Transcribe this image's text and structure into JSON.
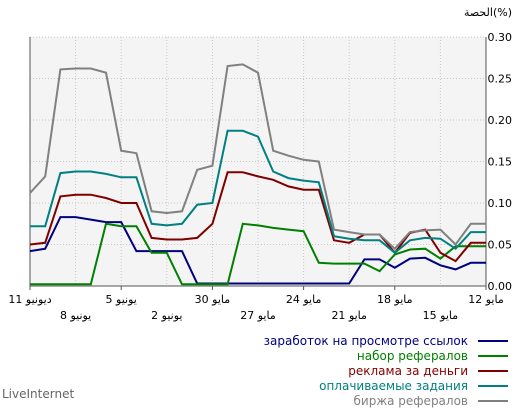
{
  "chart_data": {
    "type": "line",
    "title": "",
    "ylabel": "الحصة(%)",
    "ylim": [
      0,
      0.3
    ],
    "yticks": [
      "0.00",
      "0.05",
      "0.10",
      "0.15",
      "0.20",
      "0.25",
      "0.30"
    ],
    "grid": true,
    "x_labels_upper": [
      "11 ديونيو",
      "5 يونيو",
      "30 مايو",
      "24 مايو",
      "18 مايو",
      "12 مايو"
    ],
    "x_labels_lower": [
      "8 يونيو",
      "2 يونيو",
      "27 مايو",
      "21 مايو",
      "15 مايو"
    ],
    "series": [
      {
        "name": "заработок на просмотре ссылок",
        "color": "#000080",
        "values": [
          0.042,
          0.045,
          0.083,
          0.083,
          0.08,
          0.077,
          0.077,
          0.042,
          0.042,
          0.042,
          0.042,
          0.003,
          0.003,
          0.003,
          0.003,
          0.003,
          0.003,
          0.003,
          0.003,
          0.003,
          0.003,
          0.003,
          0.032,
          0.032,
          0.022,
          0.033,
          0.034,
          0.025,
          0.02,
          0.028,
          0.028
        ]
      },
      {
        "name": "набор рефералов",
        "color": "#008000",
        "values": [
          0.002,
          0.002,
          0.002,
          0.002,
          0.002,
          0.075,
          0.072,
          0.072,
          0.04,
          0.04,
          0.002,
          0.002,
          0.002,
          0.002,
          0.075,
          0.073,
          0.07,
          0.068,
          0.066,
          0.028,
          0.027,
          0.027,
          0.027,
          0.018,
          0.038,
          0.044,
          0.045,
          0.033,
          0.048,
          0.048,
          0.048
        ]
      },
      {
        "name": "реклама за деньги",
        "color": "#800000",
        "values": [
          0.05,
          0.052,
          0.108,
          0.11,
          0.11,
          0.106,
          0.1,
          0.1,
          0.058,
          0.056,
          0.056,
          0.058,
          0.075,
          0.137,
          0.137,
          0.132,
          0.128,
          0.12,
          0.116,
          0.116,
          0.055,
          0.052,
          0.062,
          0.062,
          0.04,
          0.064,
          0.068,
          0.04,
          0.03,
          0.052,
          0.052
        ]
      },
      {
        "name": "оплачиваемые задания",
        "color": "#008080",
        "values": [
          0.072,
          0.072,
          0.136,
          0.138,
          0.138,
          0.135,
          0.131,
          0.131,
          0.075,
          0.073,
          0.075,
          0.098,
          0.1,
          0.187,
          0.187,
          0.18,
          0.138,
          0.13,
          0.127,
          0.125,
          0.06,
          0.057,
          0.055,
          0.055,
          0.04,
          0.055,
          0.058,
          0.057,
          0.045,
          0.065,
          0.065
        ]
      },
      {
        "name": "биржа рефералов",
        "color": "#808080",
        "values": [
          0.112,
          0.132,
          0.261,
          0.262,
          0.262,
          0.257,
          0.163,
          0.16,
          0.09,
          0.088,
          0.09,
          0.14,
          0.145,
          0.265,
          0.267,
          0.257,
          0.163,
          0.157,
          0.152,
          0.15,
          0.068,
          0.065,
          0.062,
          0.062,
          0.045,
          0.065,
          0.067,
          0.068,
          0.05,
          0.075,
          0.075
        ]
      }
    ]
  },
  "footer": "LiveInternet"
}
